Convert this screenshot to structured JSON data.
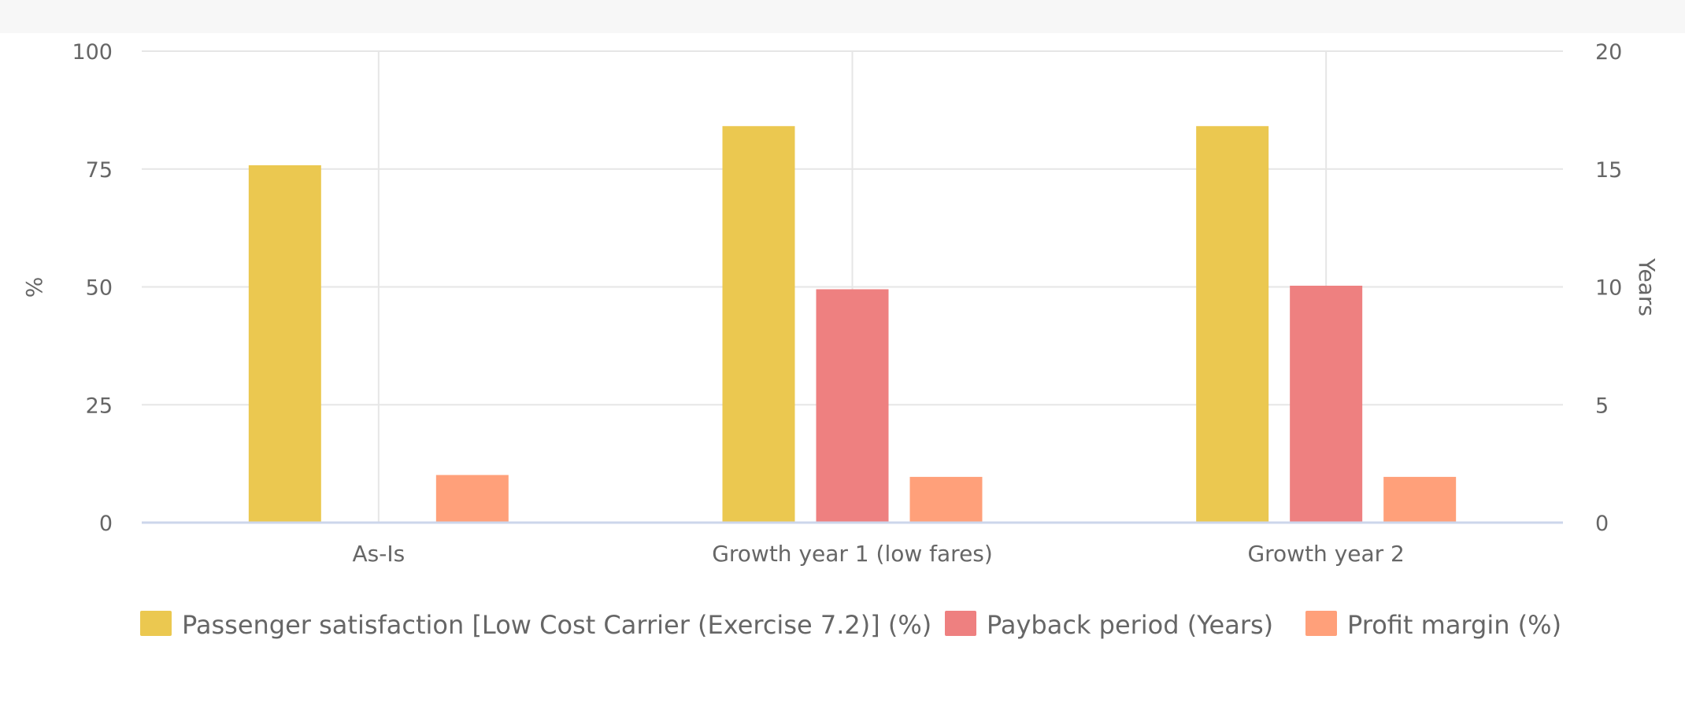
{
  "chart_data": {
    "type": "bar",
    "categories": [
      "As-Is",
      "Growth year 1 (low fares)",
      "Growth year 2"
    ],
    "series": [
      {
        "name": "Passenger satisfaction [Low Cost Carrier (Exercise 7.2)] (%)",
        "axis": "left",
        "color": "#ebc850",
        "values": [
          75.8,
          84.1,
          84.1
        ]
      },
      {
        "name": "Payback period (Years)",
        "axis": "right",
        "color": "#ee8080",
        "values": [
          null,
          9.9,
          10.05
        ]
      },
      {
        "name": "Profit margin (%)",
        "axis": "left",
        "color": "#ffa07a",
        "values": [
          10.1,
          9.7,
          9.7
        ]
      }
    ],
    "y_left": {
      "label": "%",
      "ticks": [
        0,
        25,
        50,
        75,
        100
      ],
      "range": [
        0,
        100
      ]
    },
    "y_right": {
      "label": "Years",
      "ticks": [
        0,
        5,
        10,
        15,
        20
      ],
      "range": [
        0,
        20
      ]
    },
    "grid": true,
    "legend": "bottom"
  }
}
